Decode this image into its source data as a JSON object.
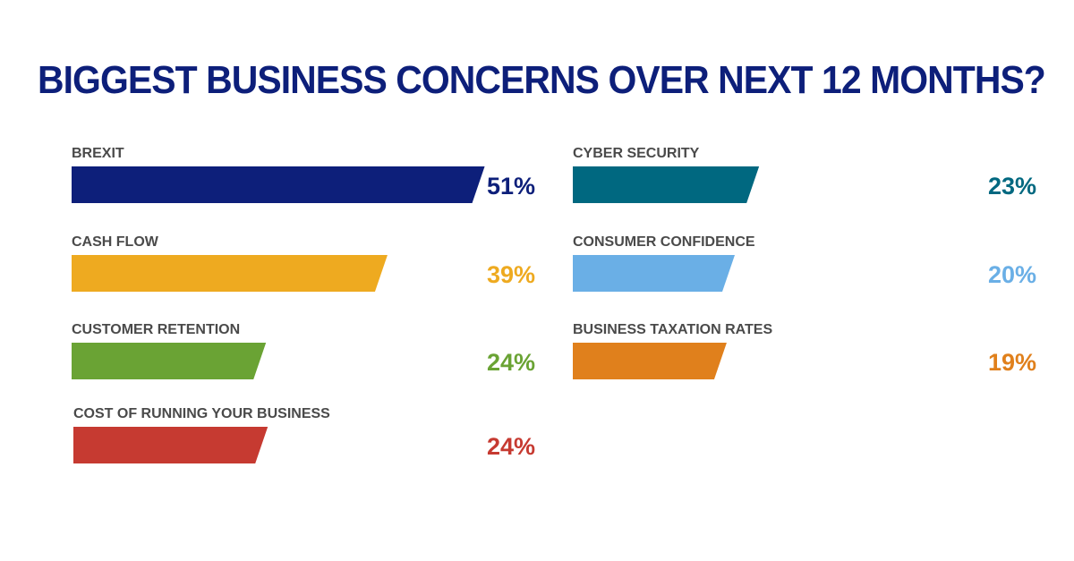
{
  "chart_data": {
    "type": "bar",
    "orientation": "horizontal",
    "title": "BIGGEST BUSINESS CONCERNS OVER NEXT 12 MONTHS?",
    "xlabel": "",
    "ylabel": "",
    "xlim": [
      0,
      60
    ],
    "grid": false,
    "legend": "none",
    "value_suffix": "%",
    "columns": [
      {
        "bars": [
          {
            "label": "BREXIT",
            "value": 51,
            "value_label": "51%",
            "color": "#0d1f7a"
          },
          {
            "label": "CASH FLOW",
            "value": 39,
            "value_label": "39%",
            "color": "#eeaa20"
          },
          {
            "label": "CUSTOMER RETENTION",
            "value": 24,
            "value_label": "24%",
            "color": "#6aa334"
          },
          {
            "label": "COST OF RUNNING YOUR BUSINESS",
            "value": 24,
            "value_label": "24%",
            "color": "#c63a31"
          }
        ]
      },
      {
        "bars": [
          {
            "label": "CYBER SECURITY",
            "value": 23,
            "value_label": "23%",
            "color": "#006880"
          },
          {
            "label": "CONSUMER CONFIDENCE",
            "value": 20,
            "value_label": "20%",
            "color": "#6aafe6"
          },
          {
            "label": "BUSINESS TAXATION RATES",
            "value": 19,
            "value_label": "19%",
            "color": "#e0801c"
          }
        ]
      }
    ]
  }
}
